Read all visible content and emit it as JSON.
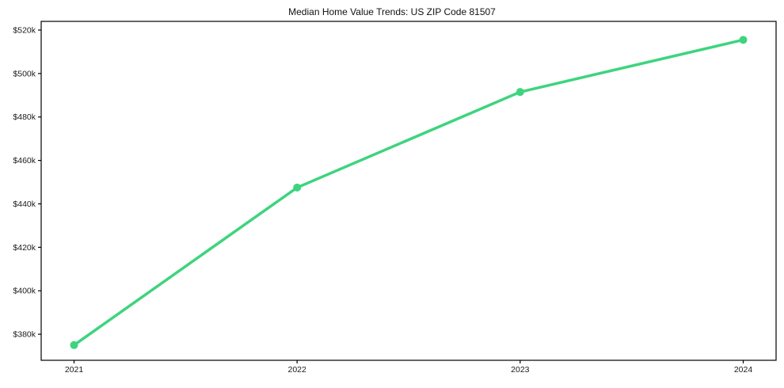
{
  "chart_data": {
    "type": "line",
    "title": "Median Home Value Trends: US ZIP Code 81507",
    "x": [
      2021,
      2022,
      2023,
      2024
    ],
    "x_tick_labels": [
      "2021",
      "2022",
      "2023",
      "2024"
    ],
    "series": [
      {
        "name": "Median Home Value",
        "values": [
          375000,
          447500,
          491500,
          515500
        ]
      }
    ],
    "y_ticks": [
      380000,
      400000,
      420000,
      440000,
      460000,
      480000,
      500000,
      520000
    ],
    "y_tick_labels": [
      "$380k",
      "$400k",
      "$420k",
      "$440k",
      "$460k",
      "$480k",
      "$500k",
      "$520k"
    ],
    "ylim": [
      368000,
      524000
    ],
    "grid": false,
    "legend_position": "none",
    "line_color": "#3ed47e",
    "marker": "circle",
    "axis_color": "#000000",
    "tick_label_color": "#1a1a1a",
    "background_color": "#ffffff"
  }
}
